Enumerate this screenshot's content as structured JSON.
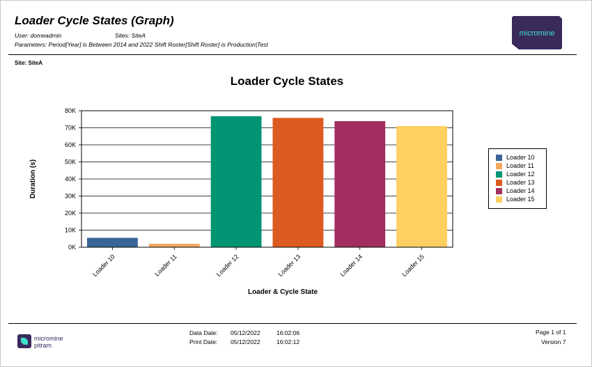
{
  "report": {
    "title": "Loader Cycle States (Graph)",
    "user": "User: domeadmin",
    "sites": "Sites: SiteA",
    "parameters": "Parameters: Period[Year] is Between 2014 and 2022 Shift Roster[Shift Roster] is Production|Test",
    "site_label": "Site: SiteA",
    "brand_text": "micromine"
  },
  "chart_data": {
    "type": "bar",
    "title": "Loader Cycle States",
    "xlabel": "Loader & Cycle State",
    "ylabel": "Duration (s)",
    "ylim": [
      0,
      80000
    ],
    "y_ticks": [
      0,
      10000,
      20000,
      30000,
      40000,
      50000,
      60000,
      70000,
      80000
    ],
    "y_tick_labels": [
      "0K",
      "10K",
      "20K",
      "30K",
      "40K",
      "50K",
      "60K",
      "70K",
      "80K"
    ],
    "categories": [
      "Loader 10",
      "Loader 11",
      "Loader 12",
      "Loader 13",
      "Loader 14",
      "Loader 15"
    ],
    "values": [
      5500,
      2000,
      76800,
      75800,
      73900,
      71000
    ],
    "colors": [
      "#3a6599",
      "#f2a65e",
      "#009473",
      "#dd5a20",
      "#a32d60",
      "#fecf61"
    ],
    "grid": true,
    "legend": {
      "placement": "right",
      "entries": [
        "Loader 10",
        "Loader 11",
        "Loader 12",
        "Loader 13",
        "Loader 14",
        "Loader 15"
      ]
    }
  },
  "footer": {
    "brand_line1": "micromine",
    "brand_line2": "pitram",
    "data_date_label": "Data Date:",
    "data_date": "05/12/2022",
    "data_time": "16:02:06",
    "print_date_label": "Print Date:",
    "print_date": "05/12/2022",
    "print_time": "16:02:12",
    "page": "Page 1 of 1",
    "version": "Version 7"
  }
}
